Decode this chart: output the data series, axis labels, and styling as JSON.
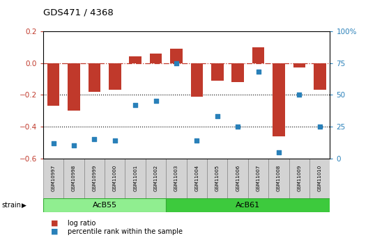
{
  "title": "GDS471 / 4368",
  "samples": [
    "GSM10997",
    "GSM10998",
    "GSM10999",
    "GSM11000",
    "GSM11001",
    "GSM11002",
    "GSM11003",
    "GSM11004",
    "GSM11005",
    "GSM11006",
    "GSM11007",
    "GSM11008",
    "GSM11009",
    "GSM11010"
  ],
  "log_ratio": [
    -0.27,
    -0.3,
    -0.18,
    -0.17,
    0.04,
    0.06,
    0.09,
    -0.21,
    -0.11,
    -0.12,
    0.1,
    -0.46,
    -0.03,
    -0.17
  ],
  "percentile": [
    12,
    10,
    15,
    14,
    42,
    45,
    75,
    14,
    33,
    25,
    68,
    5,
    50,
    25
  ],
  "bar_color": "#c0392b",
  "dot_color": "#2980b9",
  "dashed_line_color": "#c0392b",
  "dotted_line_color": "#000000",
  "bg_color": "#ffffff",
  "plot_bg_color": "#ffffff",
  "ylim_left": [
    -0.6,
    0.2
  ],
  "ylim_right": [
    0,
    100
  ],
  "yticks_left": [
    -0.6,
    -0.4,
    -0.2,
    0.0,
    0.2
  ],
  "yticks_right": [
    0,
    25,
    50,
    75,
    100
  ],
  "ytick_labels_right": [
    "0",
    "25",
    "50",
    "75",
    "100%"
  ],
  "group1_label": "AcB55",
  "group2_label": "AcB61",
  "group1_count": 6,
  "group2_count": 8,
  "strain_label": "strain",
  "legend_bar": "log ratio",
  "legend_dot": "percentile rank within the sample",
  "dotted_lines": [
    -0.2,
    -0.4
  ],
  "strain_box_color_1": "#90ee90",
  "strain_box_color_2": "#3dca3d",
  "sample_box_color": "#d3d3d3",
  "sample_box_edge": "#888888"
}
